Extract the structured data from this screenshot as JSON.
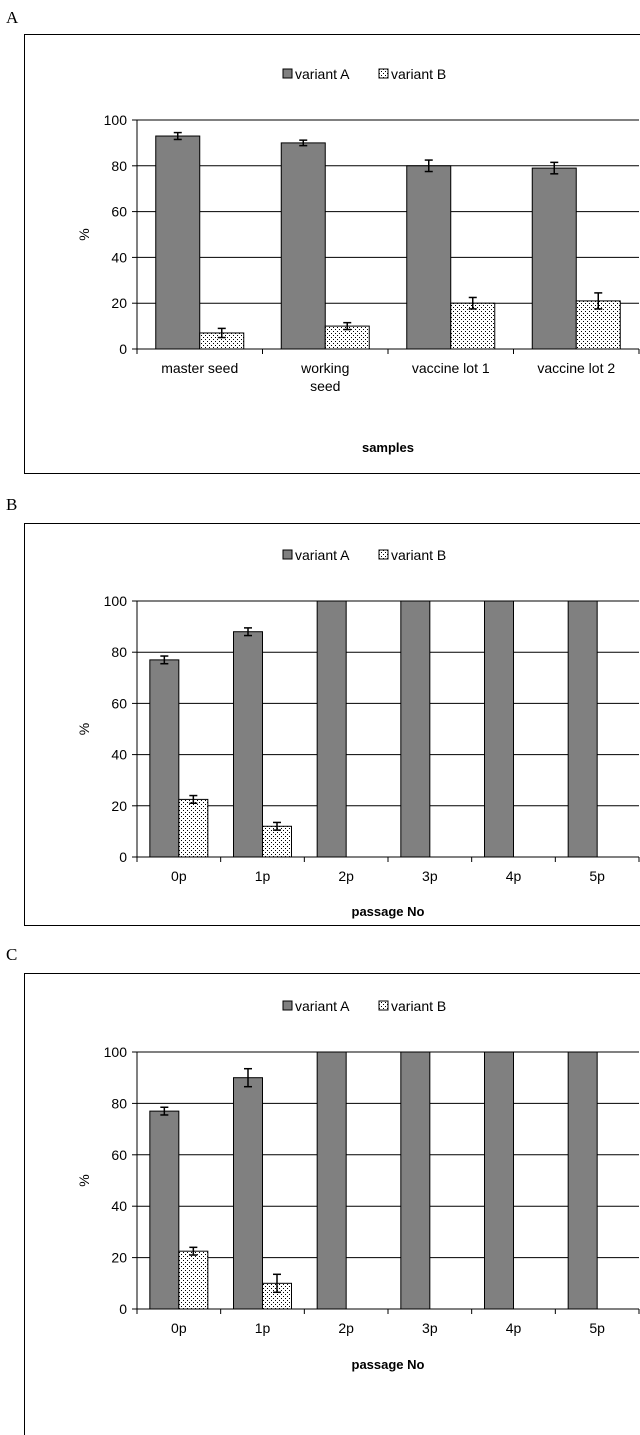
{
  "colors": {
    "variant_a": "#808080",
    "variant_b": "#ffffff",
    "grid": "#000000"
  },
  "chart_data": [
    {
      "type": "bar",
      "panel": "A",
      "legend": {
        "position": "top-center",
        "labels": [
          "variant A",
          "variant B"
        ]
      },
      "categories": [
        [
          "master seed"
        ],
        [
          "working",
          "seed"
        ],
        [
          "vaccine lot 1"
        ],
        [
          "vaccine lot 2"
        ]
      ],
      "series": [
        {
          "name": "variant A",
          "values": [
            93,
            90,
            80,
            79
          ],
          "errors": [
            1.5,
            1.2,
            2.5,
            2.5
          ]
        },
        {
          "name": "variant B",
          "values": [
            7,
            10,
            20,
            21
          ],
          "errors": [
            2,
            1.5,
            2.5,
            3.5
          ]
        }
      ],
      "xlabel": "samples",
      "ylabel": "%",
      "ylim": [
        0,
        100
      ],
      "yticks": [
        0,
        20,
        40,
        60,
        80,
        100
      ],
      "grid": true
    },
    {
      "type": "bar",
      "panel": "B",
      "legend": {
        "position": "top-center",
        "labels": [
          "variant A",
          "variant B"
        ]
      },
      "categories": [
        [
          "0p"
        ],
        [
          "1p"
        ],
        [
          "2p"
        ],
        [
          "3p"
        ],
        [
          "4p"
        ],
        [
          "5p"
        ]
      ],
      "series": [
        {
          "name": "variant A",
          "values": [
            77,
            88,
            100,
            100,
            100,
            100
          ],
          "errors": [
            1.5,
            1.5,
            0,
            0,
            0,
            0
          ]
        },
        {
          "name": "variant B",
          "values": [
            22.5,
            12,
            0,
            0,
            0,
            0
          ],
          "errors": [
            1.5,
            1.5,
            0,
            0,
            0,
            0
          ]
        }
      ],
      "xlabel": "passage No",
      "ylabel": "%",
      "ylim": [
        0,
        100
      ],
      "yticks": [
        0,
        20,
        40,
        60,
        80,
        100
      ],
      "grid": true
    },
    {
      "type": "bar",
      "panel": "C",
      "legend": {
        "position": "top-center",
        "labels": [
          "variant A",
          "variant B"
        ]
      },
      "categories": [
        [
          "0p"
        ],
        [
          "1p"
        ],
        [
          "2p"
        ],
        [
          "3p"
        ],
        [
          "4p"
        ],
        [
          "5p"
        ]
      ],
      "series": [
        {
          "name": "variant A",
          "values": [
            77,
            90,
            100,
            100,
            100,
            100
          ],
          "errors": [
            1.5,
            3.5,
            0,
            0,
            0,
            0
          ]
        },
        {
          "name": "variant B",
          "values": [
            22.5,
            10,
            0,
            0,
            0,
            0
          ],
          "errors": [
            1.5,
            3.5,
            0,
            0,
            0,
            0
          ]
        }
      ],
      "xlabel": "passage No",
      "ylabel": "%",
      "ylim": [
        0,
        100
      ],
      "yticks": [
        0,
        20,
        40,
        60,
        80,
        100
      ],
      "grid": true
    }
  ]
}
